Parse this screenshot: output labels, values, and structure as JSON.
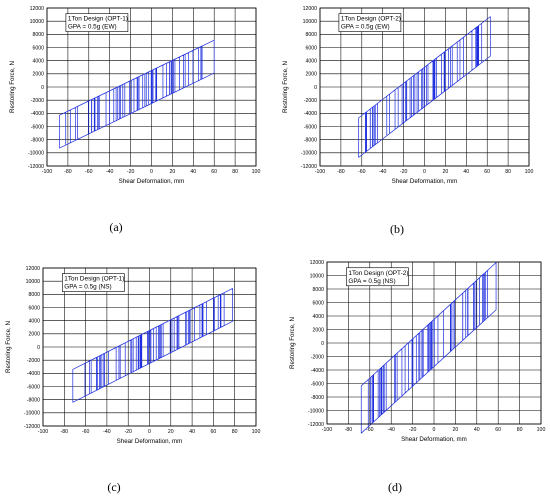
{
  "chart_data": [
    {
      "type": "line",
      "panel_label": "(a)",
      "legend": [
        "1Ton Design (OPT-1)",
        "GPA = 0.5g (EW)"
      ],
      "xlabel": "Shear Deformation, mm",
      "ylabel": "Restoring Force, N",
      "xlim": [
        -100,
        100
      ],
      "ylim": [
        -12000,
        12000
      ],
      "xticks": [
        -100,
        -80,
        -60,
        -40,
        -20,
        0,
        20,
        40,
        60,
        80,
        100
      ],
      "yticks": [
        12000,
        10000,
        8000,
        6000,
        4000,
        2000,
        0,
        -2000,
        -4000,
        -6000,
        -8000,
        -10000,
        -12000
      ],
      "grid": true,
      "hysteresis": {
        "k": 77,
        "fy": 2500,
        "dmin": -88,
        "dmax": 60,
        "n_cycles": 32,
        "band_lo": 0.04,
        "band_hi": 0.96
      },
      "series_color": "#1f2fe0"
    },
    {
      "type": "line",
      "panel_label": "(b)",
      "legend": [
        "1Ton Design (OPT-2)",
        "GPA = 0.5g (EW)"
      ],
      "xlabel": "Shear Deformation, mm",
      "ylabel": "Restoring Force, N",
      "xlim": [
        -100,
        100
      ],
      "ylim": [
        -12000,
        12000
      ],
      "xticks": [
        -100,
        -80,
        -60,
        -40,
        -20,
        0,
        20,
        40,
        60,
        80,
        100
      ],
      "yticks": [
        12000,
        10000,
        8000,
        6000,
        4000,
        2000,
        0,
        -2000,
        -4000,
        -6000,
        -8000,
        -10000,
        -12000
      ],
      "grid": true,
      "hysteresis": {
        "k": 122,
        "fy": 3000,
        "dmin": -63,
        "dmax": 63,
        "n_cycles": 32,
        "band_lo": 0.05,
        "band_hi": 0.95
      },
      "series_color": "#1f2fe0"
    },
    {
      "type": "line",
      "panel_label": "(c)",
      "legend": [
        "1Ton Design (OPT-1)",
        "GPA = 0.5g (NS)"
      ],
      "xlabel": "Shear Deformation, mm",
      "ylabel": "Restoring Force, N",
      "xlim": [
        -100,
        100
      ],
      "ylim": [
        -12000,
        12000
      ],
      "xticks": [
        -100,
        -80,
        -60,
        -40,
        -20,
        0,
        20,
        40,
        60,
        80,
        100
      ],
      "yticks": [
        12000,
        10000,
        8000,
        6000,
        4000,
        2000,
        0,
        -2000,
        -4000,
        -6000,
        -8000,
        -10000,
        -12000
      ],
      "grid": true,
      "hysteresis": {
        "k": 82,
        "fy": 2500,
        "dmin": -72,
        "dmax": 78,
        "n_cycles": 34,
        "band_lo": 0.05,
        "band_hi": 0.95
      },
      "series_color": "#1f2fe0"
    },
    {
      "type": "line",
      "panel_label": "(d)",
      "legend": [
        "1Ton Design (OPT-2)",
        "GPA = 0.5g (NS)"
      ],
      "xlabel": "Shear Deformation, mm",
      "ylabel": "Restoring Force, N",
      "xlim": [
        -100,
        100
      ],
      "ylim": [
        -12000,
        12000
      ],
      "xticks": [
        -100,
        -80,
        -60,
        -40,
        -20,
        0,
        20,
        40,
        60,
        80,
        100
      ],
      "yticks": [
        12000,
        10000,
        8000,
        6000,
        4000,
        2000,
        0,
        -2000,
        -4000,
        -6000,
        -8000,
        -10000,
        -12000
      ],
      "grid": true,
      "hysteresis": {
        "k": 145,
        "fy": 3500,
        "dmin": -68,
        "dmax": 58,
        "n_cycles": 34,
        "band_lo": 0.05,
        "band_hi": 0.95
      },
      "series_color": "#1f2fe0"
    }
  ]
}
